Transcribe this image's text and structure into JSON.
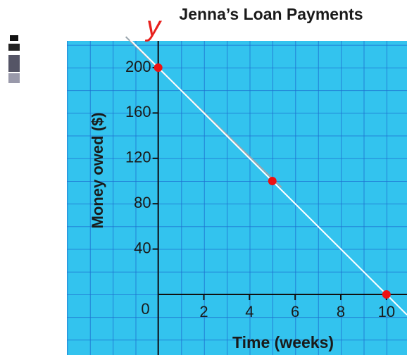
{
  "chart_data": {
    "type": "line",
    "title": "Jenna’s Loan Payments",
    "xlabel": "Time (weeks)",
    "ylabel": "Money owed ($)",
    "annotation": "y",
    "x": [
      0,
      5,
      10
    ],
    "series": [
      {
        "color": "#ffffff",
        "marker_color": "#ee1111",
        "values": [
          200,
          100,
          0
        ]
      }
    ],
    "xlim": [
      -4,
      10.9
    ],
    "ylim": [
      -53.4,
      223.6
    ],
    "xticks": [
      2,
      4,
      6,
      8,
      10
    ],
    "yticks": [
      0,
      40,
      80,
      120,
      160,
      200
    ],
    "grid": true
  }
}
